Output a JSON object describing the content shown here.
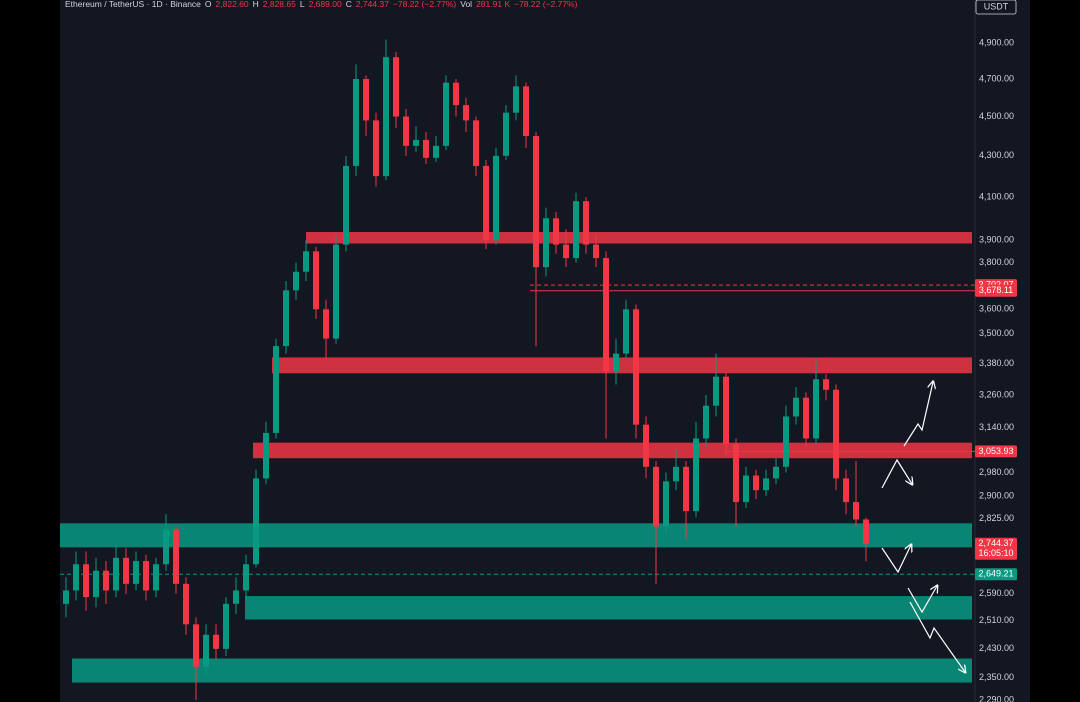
{
  "header": {
    "symbol": "Ethereum / TetherUS · 1D · Binance",
    "fields": [
      {
        "label": "O",
        "value": "2,822.60"
      },
      {
        "label": "H",
        "value": "2,828.65"
      },
      {
        "label": "L",
        "value": "2,689.00"
      },
      {
        "label": "C",
        "value": "2,744.37"
      }
    ],
    "change": "−78.22 (−2.77%)",
    "volume_label": "Vol",
    "volume": "281.91 K",
    "volume_change": "−78.22 (−2.77%)"
  },
  "chart_data": {
    "type": "candlestick",
    "currency": "USDT",
    "log": true,
    "ylim": [
      2285,
      5150
    ],
    "yticks": [
      {
        "value": 4900,
        "label": "4,900.00"
      },
      {
        "value": 4700,
        "label": "4,700.00"
      },
      {
        "value": 4500,
        "label": "4,500.00"
      },
      {
        "value": 4300,
        "label": "4,300.00"
      },
      {
        "value": 4100,
        "label": "4,100.00"
      },
      {
        "value": 3900,
        "label": "3,900.00"
      },
      {
        "value": 3800,
        "label": "3,800.00"
      },
      {
        "value": 3600,
        "label": "3,600.00"
      },
      {
        "value": 3500,
        "label": "3,500.00"
      },
      {
        "value": 3380,
        "label": "3,380.00"
      },
      {
        "value": 3260,
        "label": "3,260.00"
      },
      {
        "value": 3140,
        "label": "3,140.00"
      },
      {
        "value": 2980,
        "label": "2,980.00"
      },
      {
        "value": 2900,
        "label": "2,900.00"
      },
      {
        "value": 2825,
        "label": "2,825.00"
      },
      {
        "value": 2590,
        "label": "2,590.00"
      },
      {
        "value": 2510,
        "label": "2,510.00"
      },
      {
        "value": 2430,
        "label": "2,430.00"
      },
      {
        "value": 2350,
        "label": "2,350.00"
      },
      {
        "value": 2290,
        "label": "2,290.00"
      }
    ],
    "up_color": "#089981",
    "down_color": "#f23645",
    "open": [
      2560,
      2600,
      2680,
      2580,
      2660,
      2600,
      2700,
      2620,
      2690,
      2600,
      2680,
      2790,
      2620,
      2500,
      2380,
      2470,
      2430,
      2560,
      2600,
      2680,
      2960,
      3120,
      3450,
      3680,
      3760,
      3850,
      3600,
      3480,
      3880,
      4250,
      4700,
      4480,
      4200,
      4820,
      4500,
      4350,
      4380,
      4290,
      4350,
      4680,
      4560,
      4480,
      4250,
      3900,
      4300,
      4520,
      4660,
      4400,
      3780,
      4000,
      3880,
      3820,
      4080,
      3880,
      3820,
      3350,
      3420,
      3600,
      3150,
      3000,
      2800,
      2950,
      3000,
      2850,
      3100,
      3220,
      3330,
      3080,
      2880,
      2970,
      2920,
      2960,
      3000,
      3180,
      3250,
      3100,
      3320,
      3280,
      2960,
      2880,
      2822.6
    ],
    "high": [
      2640,
      2720,
      2720,
      2700,
      2690,
      2740,
      2730,
      2720,
      2710,
      2700,
      2840,
      2800,
      2640,
      2520,
      2500,
      2500,
      2580,
      2640,
      2710,
      2990,
      3160,
      3480,
      3720,
      3800,
      3900,
      3870,
      3640,
      3920,
      4300,
      4780,
      4720,
      4520,
      4920,
      4850,
      4540,
      4450,
      4420,
      4400,
      4720,
      4700,
      4600,
      4500,
      4280,
      4340,
      4560,
      4720,
      4680,
      4420,
      4050,
      4030,
      3950,
      4120,
      4100,
      3920,
      3850,
      3480,
      3640,
      3620,
      3180,
      3020,
      2980,
      3060,
      3020,
      3160,
      3260,
      3420,
      3350,
      3100,
      3000,
      2990,
      2990,
      3030,
      3220,
      3290,
      3270,
      3400,
      3340,
      3300,
      2990,
      3020,
      2828.65
    ],
    "low": [
      2520,
      2570,
      2540,
      2550,
      2560,
      2580,
      2590,
      2600,
      2570,
      2580,
      2660,
      2590,
      2470,
      2290,
      2360,
      2400,
      2410,
      2530,
      2580,
      2670,
      2940,
      3100,
      3420,
      3640,
      3720,
      3560,
      3400,
      3460,
      3850,
      4200,
      4400,
      4150,
      4180,
      4440,
      4300,
      4320,
      4260,
      4270,
      4330,
      4500,
      4420,
      4200,
      3860,
      3880,
      4280,
      4480,
      4340,
      3450,
      3740,
      3840,
      3780,
      3800,
      3840,
      3780,
      3100,
      3300,
      3400,
      3100,
      2960,
      2620,
      2780,
      2920,
      2760,
      2830,
      3070,
      3180,
      3040,
      2800,
      2860,
      2890,
      2900,
      2940,
      2980,
      3150,
      3070,
      3080,
      3240,
      2920,
      2840,
      2800,
      2689
    ],
    "close": [
      2600,
      2680,
      2580,
      2660,
      2600,
      2700,
      2620,
      2690,
      2600,
      2680,
      2790,
      2620,
      2500,
      2380,
      2470,
      2430,
      2560,
      2600,
      2680,
      2960,
      3120,
      3450,
      3680,
      3760,
      3850,
      3600,
      3480,
      3880,
      4250,
      4700,
      4480,
      4200,
      4820,
      4500,
      4350,
      4380,
      4290,
      4350,
      4680,
      4560,
      4480,
      4250,
      3900,
      4300,
      4520,
      4660,
      4400,
      3780,
      4000,
      3880,
      3820,
      4080,
      3880,
      3820,
      3350,
      3420,
      3600,
      3150,
      3000,
      2800,
      2950,
      3000,
      2850,
      3100,
      3220,
      3330,
      3080,
      2880,
      2970,
      2920,
      2960,
      3000,
      3180,
      3250,
      3100,
      3320,
      3280,
      2960,
      2880,
      2822.6,
      2744.37
    ],
    "zones": [
      {
        "color": "#f23645",
        "low": 3885,
        "high": 3937,
        "start": 24
      },
      {
        "color": "#f23645",
        "low": 3343,
        "high": 3405,
        "start": 20.6
      },
      {
        "color": "#f23645",
        "low": 3030,
        "high": 3085,
        "start": 18.7
      },
      {
        "color": "#089981",
        "low": 2733,
        "high": 2810,
        "start": -0.6
      },
      {
        "color": "#089981",
        "low": 2514,
        "high": 2583,
        "start": 17.9
      },
      {
        "color": "#089981",
        "low": 2337,
        "high": 2403,
        "start": 0.6
      }
    ],
    "price_labels": [
      {
        "value": 3702.07,
        "label": "3,702.07",
        "color": "#f23645",
        "line": "dashed",
        "start": 46.4
      },
      {
        "value": 3678.11,
        "label": "3,678.11",
        "color": "#f23645",
        "line": "solid",
        "start": 46.4
      },
      {
        "value": 3053.93,
        "label": "3,053.93",
        "color": "#f23645",
        "line": "solid",
        "start": 66
      },
      {
        "value": 2744.37,
        "label": "2,744.37",
        "color": "#f23645",
        "line": "none",
        "start": 80,
        "countdown": "16:05:10"
      },
      {
        "value": 2649.21,
        "label": "2,649.21",
        "color": "#089981",
        "line": "dashed",
        "start": -0.6
      }
    ]
  }
}
